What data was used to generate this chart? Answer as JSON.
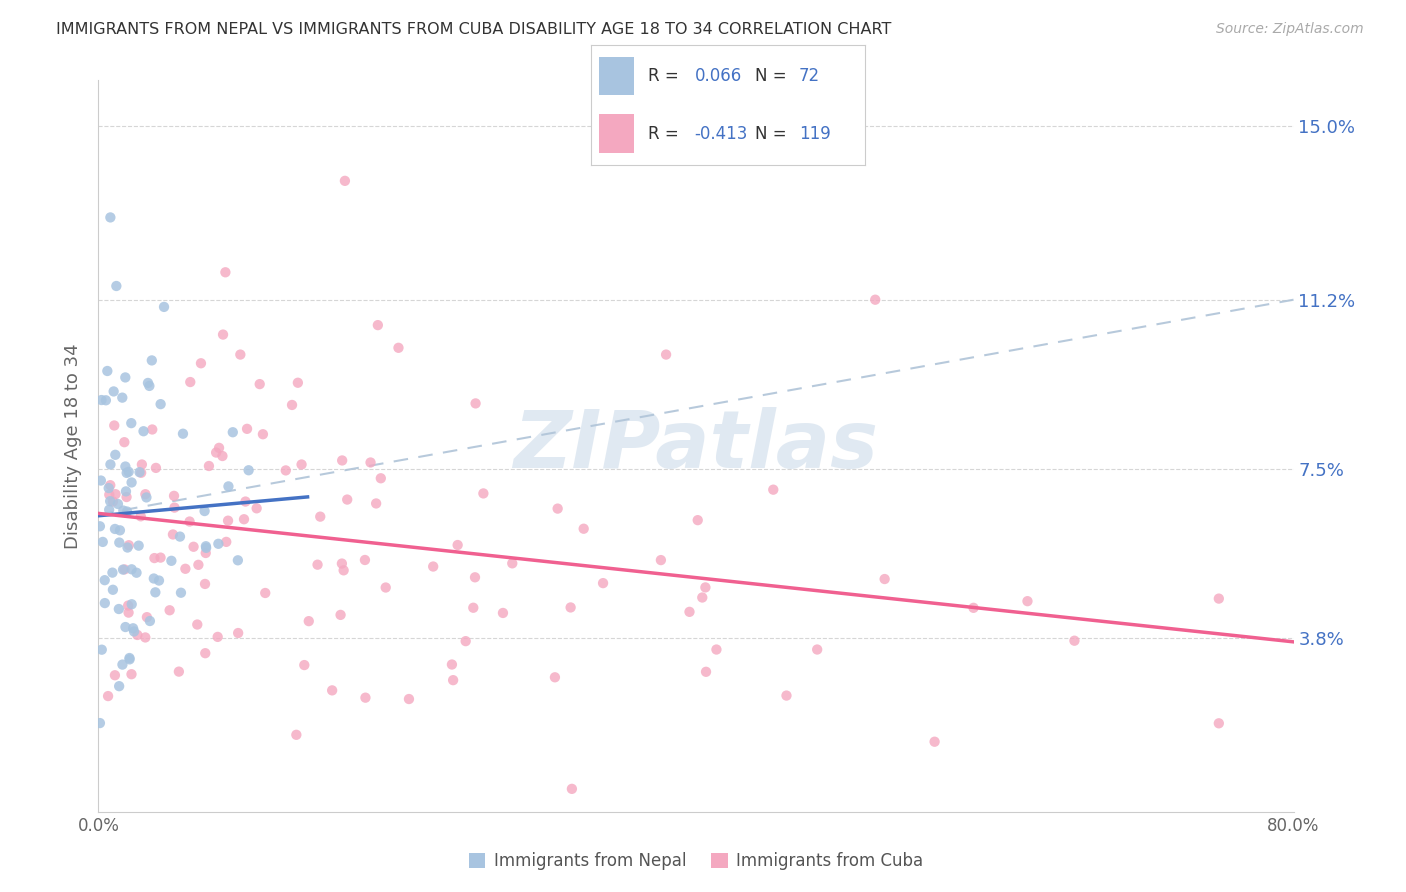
{
  "title": "IMMIGRANTS FROM NEPAL VS IMMIGRANTS FROM CUBA DISABILITY AGE 18 TO 34 CORRELATION CHART",
  "source": "Source: ZipAtlas.com",
  "ylabel": "Disability Age 18 to 34",
  "ytick_labels": [
    "3.8%",
    "7.5%",
    "11.2%",
    "15.0%"
  ],
  "ytick_values": [
    0.038,
    0.075,
    0.112,
    0.15
  ],
  "xlim": [
    0.0,
    0.8
  ],
  "ylim": [
    0.0,
    0.16
  ],
  "nepal_R": 0.066,
  "nepal_N": 72,
  "cuba_R": -0.413,
  "cuba_N": 119,
  "nepal_color": "#a8c4e0",
  "cuba_color": "#f4a8c0",
  "nepal_trendline_color": "#4472c4",
  "cuba_trendline_color": "#f06090",
  "dashed_line_color": "#b0c4d8",
  "point_size": 55,
  "background_color": "#ffffff",
  "grid_color": "#cccccc",
  "title_color": "#333333",
  "source_color": "#aaaaaa",
  "watermark": "ZIPatlas",
  "watermark_color": "#c8d8e8",
  "nepal_legend_label": "Immigrants from Nepal",
  "cuba_legend_label": "Immigrants from Cuba",
  "legend_R_label": "R = ",
  "legend_N_label": "N = ",
  "nepal_R_str": "0.066",
  "cuba_R_str": "-0.413",
  "nepal_N_str": "72",
  "cuba_N_str": "119",
  "legend_val_color": "#4472c4",
  "legend_label_color": "#333333"
}
